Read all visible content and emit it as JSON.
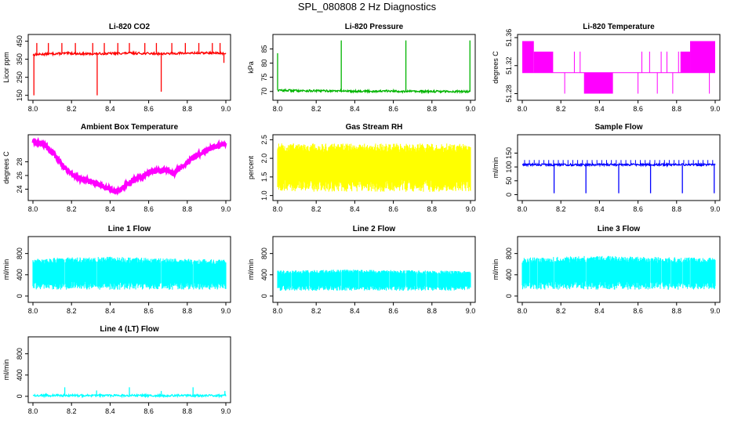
{
  "figure": {
    "title": "SPL_080808  2 Hz Diagnostics"
  },
  "chart_data": [
    {
      "type": "line",
      "title": "Li-820 CO2",
      "ylabel": "Licor ppm",
      "color": "#ff0000",
      "xlim": [
        8.0,
        9.0
      ],
      "ylim": [
        140,
        470
      ],
      "xticks": [
        8.0,
        8.2,
        8.4,
        8.6,
        8.8,
        9.0
      ],
      "xtick_labels": [
        "8.0",
        "8.2",
        "8.4",
        "8.6",
        "8.8",
        "9.0"
      ],
      "yticks": [
        150,
        250,
        350,
        450
      ],
      "ytick_labels": [
        "150",
        "250",
        "350",
        "450"
      ],
      "x": [
        8.0,
        8.05,
        8.1,
        8.15,
        8.2,
        8.25,
        8.3,
        8.35,
        8.4,
        8.45,
        8.5,
        8.55,
        8.6,
        8.65,
        8.7,
        8.75,
        8.8,
        8.85,
        8.9,
        8.95,
        9.0
      ],
      "y": [
        375,
        378,
        380,
        382,
        383,
        380,
        380,
        381,
        382,
        383,
        384,
        383,
        382,
        381,
        381,
        383,
        384,
        384,
        385,
        384,
        382
      ],
      "spikes_x": [
        8.02,
        8.08,
        8.15,
        8.22,
        8.31,
        8.37,
        8.44,
        8.5,
        8.58,
        8.64,
        8.72,
        8.79,
        8.86,
        8.93,
        8.97
      ],
      "spikes_y": [
        440,
        440,
        440,
        440,
        440,
        440,
        440,
        440,
        440,
        440,
        440,
        440,
        440,
        440,
        440
      ],
      "dips_x": [
        8.005,
        8.333,
        8.665,
        8.99
      ],
      "dips_y": [
        150,
        150,
        170,
        330
      ]
    },
    {
      "type": "line",
      "title": "Li-820 Pressure",
      "ylabel": "kPa",
      "color": "#00b400",
      "xlim": [
        8.0,
        9.0
      ],
      "ylim": [
        68,
        89
      ],
      "xticks": [
        8.0,
        8.2,
        8.4,
        8.6,
        8.8,
        9.0
      ],
      "xtick_labels": [
        "8.0",
        "8.2",
        "8.4",
        "8.6",
        "8.8",
        "9.0"
      ],
      "yticks": [
        70,
        75,
        80,
        85
      ],
      "ytick_labels": [
        "70",
        "75",
        "80",
        "85"
      ],
      "x": [
        8.0,
        8.1,
        8.2,
        8.3,
        8.4,
        8.5,
        8.6,
        8.7,
        8.8,
        8.9,
        9.0
      ],
      "y": [
        70.4,
        70.3,
        70.2,
        70.2,
        70.1,
        70.1,
        70.1,
        70.0,
        70.0,
        70.0,
        70.0
      ],
      "spikes_x": [
        8.0,
        8.33,
        8.665,
        8.997
      ],
      "spikes_y": [
        83.5,
        88,
        88,
        88
      ]
    },
    {
      "type": "step",
      "title": "Li-820 Temperature",
      "ylabel": "degrees C",
      "color": "#ff00ff",
      "xlim": [
        8.0,
        9.0
      ],
      "ylim": [
        51.275,
        51.36
      ],
      "xticks": [
        8.0,
        8.2,
        8.4,
        8.6,
        8.8,
        9.0
      ],
      "xtick_labels": [
        "8.0",
        "8.2",
        "8.4",
        "8.6",
        "8.8",
        "9.0"
      ],
      "yticks": [
        51.28,
        51.32,
        51.36
      ],
      "ytick_labels": [
        "51.28",
        "51.32",
        "51.36"
      ],
      "bands": [
        {
          "x0": 8.0,
          "x1": 8.06,
          "lo": 51.31,
          "hi": 51.355
        },
        {
          "x0": 8.06,
          "x1": 8.16,
          "lo": 51.31,
          "hi": 51.34
        },
        {
          "x0": 8.32,
          "x1": 8.47,
          "lo": 51.28,
          "hi": 51.31
        },
        {
          "x0": 8.82,
          "x1": 8.87,
          "lo": 51.31,
          "hi": 51.34
        },
        {
          "x0": 8.87,
          "x1": 9.0,
          "lo": 51.31,
          "hi": 51.355
        }
      ],
      "baseline": 51.31
    },
    {
      "type": "line",
      "title": "Ambient Box Temperature",
      "ylabel": "degrees C",
      "color": "#ff00ff",
      "xlim": [
        8.0,
        9.0
      ],
      "ylim": [
        22.8,
        31.5
      ],
      "xticks": [
        8.0,
        8.2,
        8.4,
        8.6,
        8.8,
        9.0
      ],
      "xtick_labels": [
        "8.0",
        "8.2",
        "8.4",
        "8.6",
        "8.8",
        "9.0"
      ],
      "yticks": [
        24,
        26,
        28
      ],
      "ytick_labels": [
        "24",
        "26",
        "28"
      ],
      "x": [
        8.0,
        8.05,
        8.1,
        8.15,
        8.2,
        8.25,
        8.3,
        8.35,
        8.4,
        8.43,
        8.45,
        8.5,
        8.55,
        8.6,
        8.65,
        8.7,
        8.73,
        8.75,
        8.8,
        8.85,
        8.9,
        8.95,
        9.0
      ],
      "y": [
        30.9,
        30.7,
        29.4,
        27.6,
        26.2,
        25.5,
        25.1,
        24.6,
        24.0,
        23.6,
        24.0,
        24.9,
        25.7,
        26.4,
        26.8,
        26.7,
        26.3,
        26.8,
        27.9,
        28.9,
        29.7,
        30.2,
        30.7
      ],
      "band_half_width": 0.35
    },
    {
      "type": "area",
      "title": "Gas Stream RH",
      "ylabel": "percent",
      "color": "#ffff00",
      "xlim": [
        8.0,
        9.0
      ],
      "ylim": [
        0.95,
        2.55
      ],
      "xticks": [
        8.0,
        8.2,
        8.4,
        8.6,
        8.8,
        9.0
      ],
      "xtick_labels": [
        "8.0",
        "8.2",
        "8.4",
        "8.6",
        "8.8",
        "9.0"
      ],
      "yticks": [
        1.0,
        1.5,
        2.0,
        2.5
      ],
      "ytick_labels": [
        "1.0",
        "1.5",
        "2.0",
        "2.5"
      ],
      "x": [
        8.0,
        9.0
      ],
      "y_low": [
        1.1,
        1.1
      ],
      "y_high": [
        2.4,
        2.4
      ]
    },
    {
      "type": "line",
      "title": "Sample Flow",
      "ylabel": "ml/min",
      "color": "#0000ff",
      "xlim": [
        8.0,
        9.0
      ],
      "ylim": [
        -10,
        205
      ],
      "xticks": [
        8.0,
        8.2,
        8.4,
        8.6,
        8.8,
        9.0
      ],
      "xtick_labels": [
        "8.0",
        "8.2",
        "8.4",
        "8.6",
        "8.8",
        "9.0"
      ],
      "yticks": [
        0,
        50,
        100,
        150
      ],
      "ytick_labels": [
        "0",
        "50",
        "100",
        "150"
      ],
      "x": [
        8.0,
        9.0
      ],
      "y": [
        108,
        108
      ],
      "dips_x": [
        8.165,
        8.33,
        8.5,
        8.665,
        8.83,
        8.995
      ],
      "dips_y": [
        5,
        5,
        5,
        5,
        5,
        5
      ]
    },
    {
      "type": "area",
      "title": "Line 1 Flow",
      "ylabel": "ml/min",
      "color": "#00ffff",
      "xlim": [
        8.0,
        9.0
      ],
      "ylim": [
        -60,
        1060
      ],
      "xticks": [
        8.0,
        8.2,
        8.4,
        8.6,
        8.8,
        9.0
      ],
      "xtick_labels": [
        "8.0",
        "8.2",
        "8.4",
        "8.6",
        "8.8",
        "9.0"
      ],
      "yticks": [
        0,
        400,
        800
      ],
      "ytick_labels": [
        "0",
        "400",
        "800"
      ],
      "x": [
        8.0,
        8.2,
        8.4,
        8.6,
        8.8,
        9.0
      ],
      "y_low": [
        120,
        120,
        120,
        120,
        120,
        120
      ],
      "y_high": [
        700,
        730,
        740,
        720,
        700,
        690
      ],
      "gaps_x": [
        8.165,
        8.33,
        8.5,
        8.665,
        8.83
      ]
    },
    {
      "type": "area",
      "title": "Line 2 Flow",
      "ylabel": "ml/min",
      "color": "#00ffff",
      "xlim": [
        8.0,
        9.0
      ],
      "ylim": [
        -60,
        1060
      ],
      "xticks": [
        8.0,
        8.2,
        8.4,
        8.6,
        8.8,
        9.0
      ],
      "xtick_labels": [
        "8.0",
        "8.2",
        "8.4",
        "8.6",
        "8.8",
        "9.0"
      ],
      "yticks": [
        0,
        400,
        800
      ],
      "ytick_labels": [
        "0",
        "400",
        "800"
      ],
      "x": [
        8.0,
        8.2,
        8.4,
        8.6,
        8.8,
        9.0
      ],
      "y_low": [
        100,
        100,
        100,
        100,
        100,
        100
      ],
      "y_high": [
        480,
        490,
        500,
        490,
        480,
        470
      ],
      "gaps_x": [
        8.07,
        8.165,
        8.25,
        8.33,
        8.42,
        8.5,
        8.58,
        8.665,
        8.72,
        8.77,
        8.83,
        8.9,
        8.95
      ]
    },
    {
      "type": "area",
      "title": "Line 3 Flow",
      "ylabel": "ml/min",
      "color": "#00ffff",
      "xlim": [
        8.0,
        9.0
      ],
      "ylim": [
        -60,
        1060
      ],
      "xticks": [
        8.0,
        8.2,
        8.4,
        8.6,
        8.8,
        9.0
      ],
      "xtick_labels": [
        "8.0",
        "8.2",
        "8.4",
        "8.6",
        "8.8",
        "9.0"
      ],
      "yticks": [
        0,
        400,
        800
      ],
      "ytick_labels": [
        "0",
        "400",
        "800"
      ],
      "x": [
        8.0,
        8.2,
        8.4,
        8.6,
        8.8,
        9.0
      ],
      "y_low": [
        120,
        120,
        120,
        120,
        120,
        120
      ],
      "y_high": [
        720,
        740,
        760,
        740,
        730,
        720
      ],
      "gaps_x": [
        8.04,
        8.08,
        8.165,
        8.33,
        8.5,
        8.55,
        8.6,
        8.665,
        8.72,
        8.77,
        8.8,
        8.83,
        8.87,
        8.9,
        8.95
      ]
    },
    {
      "type": "line",
      "title": "Line 4 (LT) Flow",
      "ylabel": "ml/min",
      "color": "#00ffff",
      "xlim": [
        8.0,
        9.0
      ],
      "ylim": [
        -60,
        1060
      ],
      "xticks": [
        8.0,
        8.2,
        8.4,
        8.6,
        8.8,
        9.0
      ],
      "xtick_labels": [
        "8.0",
        "8.2",
        "8.4",
        "8.6",
        "8.8",
        "9.0"
      ],
      "yticks": [
        0,
        400,
        800
      ],
      "ytick_labels": [
        "0",
        "400",
        "800"
      ],
      "x": [
        8.0,
        9.0
      ],
      "y": [
        15,
        15
      ],
      "spikes_x": [
        8.165,
        8.33,
        8.5,
        8.665,
        8.83,
        8.995
      ],
      "spikes_y": [
        170,
        110,
        170,
        100,
        170,
        100
      ]
    }
  ]
}
